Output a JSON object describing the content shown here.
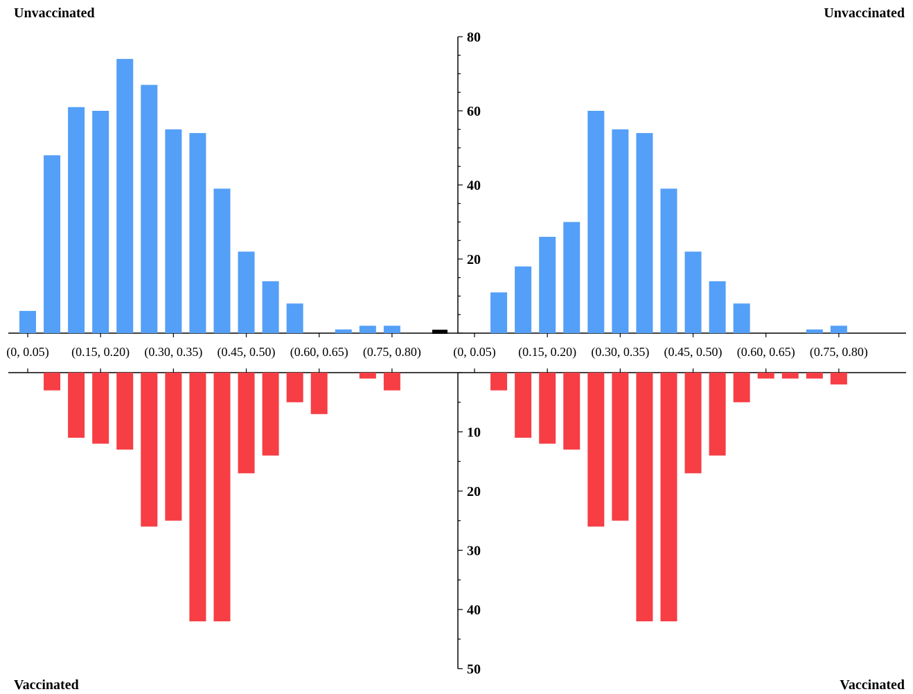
{
  "labels": {
    "top_left": "Unvaccinated",
    "top_right": "Unvaccinated",
    "bottom_left": "Vaccinated",
    "bottom_right": "Vaccinated"
  },
  "colors": {
    "unvaccinated": "#549ff7",
    "vaccinated": "#f63e44",
    "axis": "#000000"
  },
  "chart_data": [
    {
      "type": "bar",
      "panel": "left",
      "categories": [
        "(0, 0.05)",
        "(0.05, 0.10)",
        "(0.10, 0.15)",
        "(0.15, 0.20)",
        "(0.20, 0.25)",
        "(0.25, 0.30)",
        "(0.30, 0.35)",
        "(0.35, 0.40)",
        "(0.40, 0.45)",
        "(0.45, 0.50)",
        "(0.50, 0.55)",
        "(0.55, 0.60)",
        "(0.60, 0.65)",
        "(0.65, 0.70)",
        "(0.70, 0.75)",
        "(0.75, 0.80)",
        "(0.80, 0.85)"
      ],
      "tick_labels": [
        "(0, 0.05)",
        "(0.15, 0.20)",
        "(0.30, 0.35)",
        "(0.45, 0.50)",
        "(0.60, 0.65)",
        "(0.75, 0.80)"
      ],
      "series": [
        {
          "name": "Unvaccinated",
          "values": [
            6,
            48,
            61,
            60,
            74,
            67,
            55,
            54,
            39,
            22,
            14,
            8,
            0,
            1,
            2,
            2,
            0
          ]
        },
        {
          "name": "Vaccinated",
          "values": [
            0,
            3,
            11,
            12,
            13,
            26,
            25,
            42,
            42,
            17,
            14,
            5,
            7,
            0,
            1,
            3,
            0
          ]
        }
      ],
      "ylim_top": [
        0,
        80
      ],
      "ylim_bottom": [
        0,
        50
      ]
    },
    {
      "type": "bar",
      "panel": "right",
      "categories": [
        "(0, 0.05)",
        "(0.05, 0.10)",
        "(0.10, 0.15)",
        "(0.15, 0.20)",
        "(0.20, 0.25)",
        "(0.25, 0.30)",
        "(0.30, 0.35)",
        "(0.35, 0.40)",
        "(0.40, 0.45)",
        "(0.45, 0.50)",
        "(0.50, 0.55)",
        "(0.55, 0.60)",
        "(0.60, 0.65)",
        "(0.65, 0.70)",
        "(0.70, 0.75)",
        "(0.75, 0.80)",
        "(0.80, 0.85)"
      ],
      "tick_labels": [
        "(0, 0.05)",
        "(0.15, 0.20)",
        "(0.30, 0.35)",
        "(0.45, 0.50)",
        "(0.60, 0.65)",
        "(0.75, 0.80)"
      ],
      "series": [
        {
          "name": "Unvaccinated",
          "values": [
            0,
            11,
            18,
            26,
            30,
            60,
            55,
            54,
            39,
            22,
            14,
            8,
            0,
            0,
            1,
            2,
            0
          ]
        },
        {
          "name": "Vaccinated",
          "values": [
            0,
            3,
            11,
            12,
            13,
            26,
            25,
            42,
            42,
            17,
            14,
            5,
            1,
            1,
            1,
            2,
            0
          ]
        }
      ],
      "ylim_top": [
        0,
        80
      ],
      "ylim_bottom": [
        0,
        50
      ]
    }
  ],
  "axis": {
    "top_ticks": [
      "80",
      "60",
      "40",
      "20"
    ],
    "bottom_ticks": [
      "10",
      "20",
      "30",
      "40",
      "50"
    ]
  }
}
